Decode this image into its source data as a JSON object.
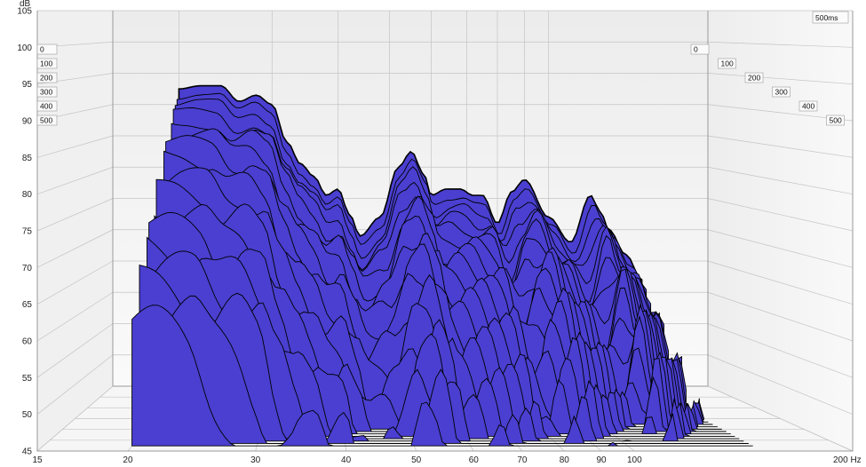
{
  "chart_data": {
    "type": "area",
    "ylabel": "dB",
    "xunit": "Hz",
    "xscale": "log",
    "xlim": [
      15,
      200
    ],
    "ylim": [
      45,
      105
    ],
    "yticks": [
      45,
      50,
      55,
      60,
      65,
      70,
      75,
      80,
      85,
      90,
      95,
      100,
      105
    ],
    "xticks": [
      {
        "value": 15,
        "label": "15"
      },
      {
        "value": 20,
        "label": "20"
      },
      {
        "value": 30,
        "label": "30"
      },
      {
        "value": 40,
        "label": "40"
      },
      {
        "value": 50,
        "label": "50"
      },
      {
        "value": 60,
        "label": "60"
      },
      {
        "value": 70,
        "label": "70"
      },
      {
        "value": 80,
        "label": "80"
      },
      {
        "value": 90,
        "label": "90"
      },
      {
        "value": 100,
        "label": "100"
      },
      {
        "value": 200,
        "label": "200 Hz"
      }
    ],
    "time_axis_label": "500ms",
    "time_slices_ms": [
      0,
      100,
      200,
      300,
      400,
      500
    ],
    "fill_color": "#4a3fd0",
    "line_color": "#000000",
    "grid": true,
    "first_slice": {
      "time_ms": 0,
      "points": [
        {
          "x": 20,
          "y": 92.5
        },
        {
          "x": 22,
          "y": 93
        },
        {
          "x": 24,
          "y": 93
        },
        {
          "x": 26,
          "y": 90.5
        },
        {
          "x": 28,
          "y": 91.5
        },
        {
          "x": 30,
          "y": 90
        },
        {
          "x": 32,
          "y": 84
        },
        {
          "x": 34,
          "y": 80.5
        },
        {
          "x": 36,
          "y": 78.5
        },
        {
          "x": 38,
          "y": 75.5
        },
        {
          "x": 40,
          "y": 76.5
        },
        {
          "x": 42,
          "y": 72.5
        },
        {
          "x": 44,
          "y": 69
        },
        {
          "x": 48,
          "y": 72
        },
        {
          "x": 52,
          "y": 80
        },
        {
          "x": 55,
          "y": 82.5
        },
        {
          "x": 58,
          "y": 79
        },
        {
          "x": 60,
          "y": 75.5
        },
        {
          "x": 64,
          "y": 76.5
        },
        {
          "x": 68,
          "y": 76.5
        },
        {
          "x": 72,
          "y": 75.5
        },
        {
          "x": 75,
          "y": 75.5
        },
        {
          "x": 80,
          "y": 71
        },
        {
          "x": 85,
          "y": 76
        },
        {
          "x": 90,
          "y": 78
        },
        {
          "x": 100,
          "y": 72
        },
        {
          "x": 110,
          "y": 68
        },
        {
          "x": 120,
          "y": 75.5
        },
        {
          "x": 125,
          "y": 73
        },
        {
          "x": 130,
          "y": 70
        },
        {
          "x": 140,
          "y": 66
        },
        {
          "x": 150,
          "y": 62
        }
      ]
    }
  }
}
